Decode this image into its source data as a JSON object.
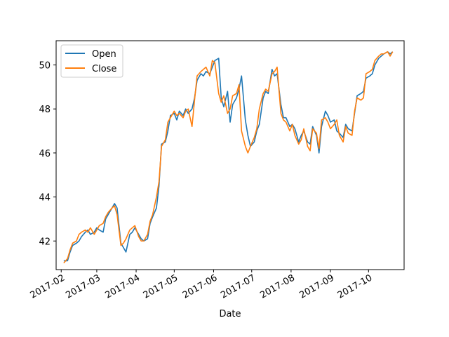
{
  "chart_data": {
    "type": "line",
    "title": "",
    "xlabel": "Date",
    "ylabel": "",
    "x_ticks": [
      "2017-02",
      "2017-03",
      "2017-04",
      "2017-05",
      "2017-06",
      "2017-07",
      "2017-08",
      "2017-09",
      "2017-10"
    ],
    "y_ticks": [
      42,
      44,
      46,
      48,
      50
    ],
    "xlim": [
      "2017-01-28",
      "2017-10-29"
    ],
    "ylim": [
      40.7,
      51.1
    ],
    "grid": false,
    "legend": {
      "position": "top-left"
    },
    "x": [
      "2017-02-03",
      "2017-02-06",
      "2017-02-08",
      "2017-02-10",
      "2017-02-13",
      "2017-02-15",
      "2017-02-17",
      "2017-02-20",
      "2017-02-22",
      "2017-02-24",
      "2017-02-27",
      "2017-03-01",
      "2017-03-03",
      "2017-03-06",
      "2017-03-08",
      "2017-03-10",
      "2017-03-13",
      "2017-03-15",
      "2017-03-17",
      "2017-03-20",
      "2017-03-22",
      "2017-03-24",
      "2017-03-27",
      "2017-03-29",
      "2017-03-31",
      "2017-04-03",
      "2017-04-05",
      "2017-04-07",
      "2017-04-10",
      "2017-04-12",
      "2017-04-14",
      "2017-04-17",
      "2017-04-19",
      "2017-04-21",
      "2017-04-24",
      "2017-04-26",
      "2017-04-28",
      "2017-05-01",
      "2017-05-03",
      "2017-05-05",
      "2017-05-08",
      "2017-05-10",
      "2017-05-12",
      "2017-05-15",
      "2017-05-17",
      "2017-05-19",
      "2017-05-22",
      "2017-05-24",
      "2017-05-26",
      "2017-05-29",
      "2017-05-31",
      "2017-06-02",
      "2017-06-05",
      "2017-06-07",
      "2017-06-09",
      "2017-06-12",
      "2017-06-14",
      "2017-06-16",
      "2017-06-19",
      "2017-06-21",
      "2017-06-23",
      "2017-06-26",
      "2017-06-28",
      "2017-06-30",
      "2017-07-03",
      "2017-07-05",
      "2017-07-07",
      "2017-07-10",
      "2017-07-12",
      "2017-07-14",
      "2017-07-17",
      "2017-07-19",
      "2017-07-21",
      "2017-07-24",
      "2017-07-26",
      "2017-07-28",
      "2017-07-31",
      "2017-08-02",
      "2017-08-04",
      "2017-08-07",
      "2017-08-09",
      "2017-08-11",
      "2017-08-14",
      "2017-08-16",
      "2017-08-18",
      "2017-08-21",
      "2017-08-23",
      "2017-08-25",
      "2017-08-28",
      "2017-08-30",
      "2017-09-01",
      "2017-09-04",
      "2017-09-06",
      "2017-09-08",
      "2017-09-11",
      "2017-09-13",
      "2017-09-15",
      "2017-09-18",
      "2017-09-20",
      "2017-09-22",
      "2017-09-25",
      "2017-09-27",
      "2017-09-29",
      "2017-10-02",
      "2017-10-04",
      "2017-10-06",
      "2017-10-09",
      "2017-10-11",
      "2017-10-13",
      "2017-10-16",
      "2017-10-18",
      "2017-10-20"
    ],
    "series": [
      {
        "name": "Open",
        "color": "#1f77b4",
        "values": [
          41.1,
          41.1,
          41.5,
          41.8,
          41.9,
          42.0,
          42.2,
          42.4,
          42.5,
          42.3,
          42.4,
          42.6,
          42.5,
          42.4,
          43.0,
          43.2,
          43.5,
          43.7,
          43.5,
          41.9,
          41.7,
          41.5,
          42.3,
          42.4,
          42.6,
          42.3,
          42.1,
          42.0,
          42.1,
          42.8,
          43.1,
          43.5,
          44.5,
          46.4,
          46.5,
          47.0,
          47.7,
          47.8,
          47.5,
          47.9,
          47.7,
          48.0,
          47.8,
          48.0,
          48.5,
          49.3,
          49.6,
          49.5,
          49.7,
          49.6,
          49.9,
          50.2,
          50.3,
          48.5,
          48.1,
          48.8,
          47.4,
          48.2,
          48.5,
          48.9,
          49.5,
          47.5,
          46.8,
          46.3,
          46.5,
          47.0,
          47.3,
          48.5,
          48.8,
          48.7,
          49.8,
          49.5,
          49.6,
          48.2,
          47.6,
          47.6,
          47.2,
          47.3,
          47.1,
          46.5,
          46.8,
          47.0,
          46.5,
          46.4,
          47.2,
          46.8,
          46.0,
          47.2,
          47.9,
          47.7,
          47.4,
          47.5,
          47.0,
          46.9,
          46.7,
          47.3,
          47.1,
          47.0,
          47.8,
          48.6,
          48.7,
          48.8,
          49.4,
          49.5,
          49.6,
          50.0,
          50.3,
          50.4,
          50.5,
          50.6,
          50.5,
          50.6
        ]
      },
      {
        "name": "Close",
        "color": "#ff7f0e",
        "values": [
          41.0,
          41.2,
          41.6,
          41.9,
          42.0,
          42.3,
          42.4,
          42.5,
          42.4,
          42.6,
          42.3,
          42.5,
          42.7,
          42.8,
          43.1,
          43.3,
          43.5,
          43.6,
          43.2,
          41.8,
          41.9,
          42.1,
          42.5,
          42.6,
          42.7,
          42.2,
          42.0,
          42.0,
          42.3,
          42.9,
          43.2,
          44.0,
          44.7,
          46.3,
          46.6,
          47.4,
          47.6,
          47.9,
          47.7,
          47.8,
          47.6,
          47.9,
          48.0,
          47.2,
          48.4,
          49.5,
          49.7,
          49.8,
          49.9,
          49.5,
          50.2,
          50.1,
          48.7,
          48.3,
          48.6,
          47.8,
          48.0,
          48.6,
          48.7,
          49.1,
          47.0,
          46.3,
          46.0,
          46.3,
          46.7,
          47.1,
          48.0,
          48.7,
          48.9,
          48.8,
          49.6,
          49.7,
          49.9,
          47.8,
          47.5,
          47.4,
          47.0,
          47.3,
          46.8,
          46.4,
          46.6,
          47.1,
          46.3,
          46.1,
          47.1,
          46.9,
          46.2,
          47.5,
          47.6,
          47.4,
          47.1,
          47.3,
          47.5,
          46.8,
          46.5,
          47.2,
          46.9,
          46.8,
          47.9,
          48.5,
          48.4,
          48.5,
          49.6,
          49.7,
          49.8,
          50.2,
          50.4,
          50.5,
          50.5,
          50.6,
          50.4,
          50.6
        ]
      }
    ]
  }
}
